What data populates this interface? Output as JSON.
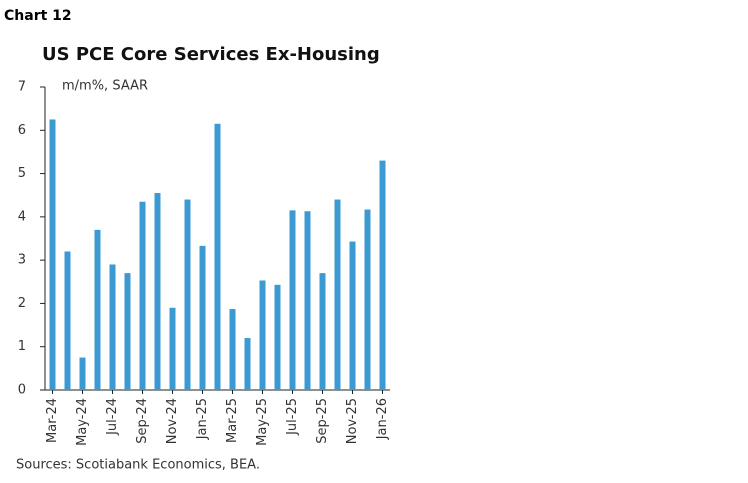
{
  "header": "Chart 12",
  "chart_data": {
    "type": "bar",
    "title": "US PCE Core Services Ex-Housing",
    "subtitle": "m/m%, SAAR",
    "source": "Sources: Scotiabank Economics, BEA.",
    "categories": [
      "Mar-24",
      null,
      "May-24",
      null,
      "Jul-24",
      null,
      "Sep-24",
      null,
      "Nov-24",
      null,
      "Jan-25",
      null,
      "Mar-25",
      null,
      "May-25",
      null,
      "Jul-25",
      null,
      "Sep-25",
      null,
      "Nov-25",
      null,
      "Jan-26"
    ],
    "values": [
      6.25,
      3.2,
      0.75,
      3.7,
      2.9,
      2.7,
      4.35,
      4.55,
      1.9,
      4.4,
      3.33,
      6.15,
      1.87,
      1.2,
      2.53,
      2.43,
      4.15,
      4.13,
      2.7,
      4.4,
      3.43,
      4.17,
      5.3
    ],
    "color": "#3a9ad1",
    "ylim": [
      0,
      7
    ],
    "yticks": [
      0,
      1,
      2,
      3,
      4,
      5,
      6,
      7
    ],
    "grid": false
  }
}
